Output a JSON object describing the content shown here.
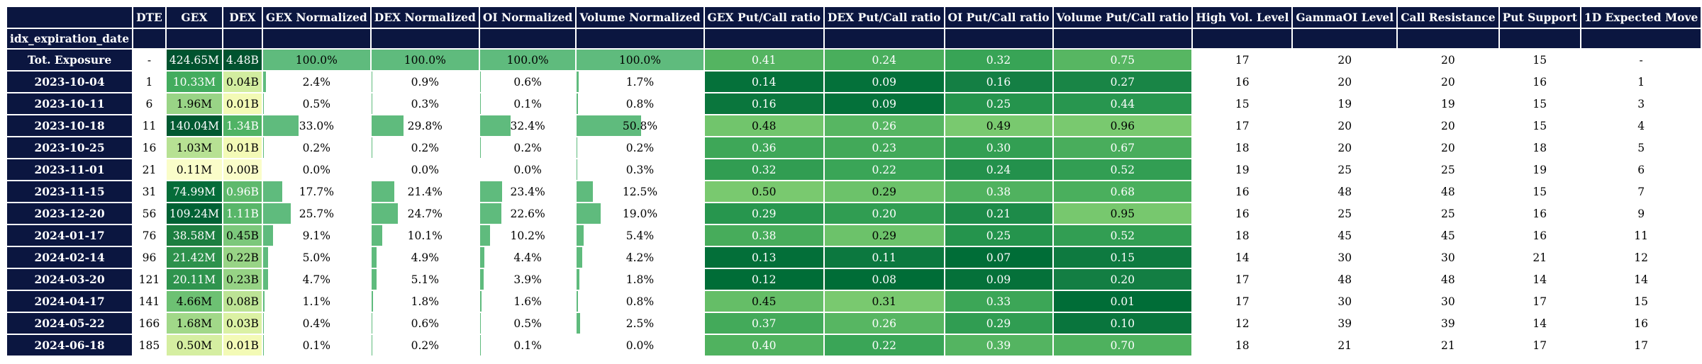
{
  "columns": [
    {
      "key": "dte",
      "label": "DTE",
      "kind": "plain"
    },
    {
      "key": "gex",
      "label": "GEX",
      "kind": "heat",
      "scale": "YlGn"
    },
    {
      "key": "dex",
      "label": "DEX",
      "kind": "heat",
      "scale": "YlGn"
    },
    {
      "key": "gex_norm",
      "label": "GEX Normalized",
      "kind": "bar"
    },
    {
      "key": "dex_norm",
      "label": "DEX Normalized",
      "kind": "bar"
    },
    {
      "key": "oi_norm",
      "label": "OI Normalized",
      "kind": "bar"
    },
    {
      "key": "vol_norm",
      "label": "Volume Normalized",
      "kind": "bar"
    },
    {
      "key": "gex_pc",
      "label": "GEX Put/Call ratio",
      "kind": "heat",
      "scale": "Greens"
    },
    {
      "key": "dex_pc",
      "label": "DEX Put/Call ratio",
      "kind": "heat",
      "scale": "Greens"
    },
    {
      "key": "oi_pc",
      "label": "OI Put/Call ratio",
      "kind": "heat",
      "scale": "Greens"
    },
    {
      "key": "vol_pc",
      "label": "Volume Put/Call ratio",
      "kind": "heat",
      "scale": "Greens"
    },
    {
      "key": "high_vol",
      "label": "High Vol. Level",
      "kind": "plain"
    },
    {
      "key": "gamma_oi",
      "label": "GammaOI Level",
      "kind": "plain"
    },
    {
      "key": "call_res",
      "label": "Call Resistance",
      "kind": "plain"
    },
    {
      "key": "put_sup",
      "label": "Put Support",
      "kind": "plain"
    },
    {
      "key": "move_1d",
      "label": "1D Expected Move",
      "kind": "plain"
    }
  ],
  "index_label": "idx_expiration_date",
  "colors": {
    "header_bg": "#0b1640",
    "bar_fill": "#5fbb7d",
    "ylgn_range": [
      "#ffffe5",
      "#f7fcb9",
      "#d9f0a3",
      "#addd8e",
      "#78c679",
      "#41ab5d",
      "#238443",
      "#006837",
      "#004529"
    ],
    "greens_range": [
      "#79c96f",
      "#5ab863",
      "#39a456",
      "#22914c",
      "#137e43",
      "#006d37"
    ]
  },
  "rows": [
    {
      "date": "Tot. Exposure",
      "dte": "-",
      "gex": "424.65M",
      "gex_v": 424.65,
      "dex": "4.48B",
      "dex_v": 4.48,
      "gex_norm": "100.0%",
      "gex_norm_v": 100.0,
      "dex_norm": "100.0%",
      "dex_norm_v": 100.0,
      "oi_norm": "100.0%",
      "oi_norm_v": 100.0,
      "vol_norm": "100.0%",
      "vol_norm_v": 100.0,
      "gex_pc": "0.41",
      "dex_pc": "0.24",
      "oi_pc": "0.32",
      "vol_pc": "0.75",
      "high_vol": "17",
      "gamma_oi": "20",
      "call_res": "20",
      "put_sup": "15",
      "move_1d": "-"
    },
    {
      "date": "2023-10-04",
      "dte": "1",
      "gex": "10.33M",
      "gex_v": 10.33,
      "dex": "0.04B",
      "dex_v": 0.04,
      "gex_norm": "2.4%",
      "gex_norm_v": 2.4,
      "dex_norm": "0.9%",
      "dex_norm_v": 0.9,
      "oi_norm": "0.6%",
      "oi_norm_v": 0.6,
      "vol_norm": "1.7%",
      "vol_norm_v": 1.7,
      "gex_pc": "0.14",
      "dex_pc": "0.09",
      "oi_pc": "0.16",
      "vol_pc": "0.27",
      "high_vol": "16",
      "gamma_oi": "20",
      "call_res": "20",
      "put_sup": "16",
      "move_1d": "1"
    },
    {
      "date": "2023-10-11",
      "dte": "6",
      "gex": "1.96M",
      "gex_v": 1.96,
      "dex": "0.01B",
      "dex_v": 0.01,
      "gex_norm": "0.5%",
      "gex_norm_v": 0.5,
      "dex_norm": "0.3%",
      "dex_norm_v": 0.3,
      "oi_norm": "0.1%",
      "oi_norm_v": 0.1,
      "vol_norm": "0.8%",
      "vol_norm_v": 0.8,
      "gex_pc": "0.16",
      "dex_pc": "0.09",
      "oi_pc": "0.25",
      "vol_pc": "0.44",
      "high_vol": "15",
      "gamma_oi": "19",
      "call_res": "19",
      "put_sup": "15",
      "move_1d": "3"
    },
    {
      "date": "2023-10-18",
      "dte": "11",
      "gex": "140.04M",
      "gex_v": 140.04,
      "dex": "1.34B",
      "dex_v": 1.34,
      "gex_norm": "33.0%",
      "gex_norm_v": 33.0,
      "dex_norm": "29.8%",
      "dex_norm_v": 29.8,
      "oi_norm": "32.4%",
      "oi_norm_v": 32.4,
      "vol_norm": "50.8%",
      "vol_norm_v": 50.8,
      "gex_pc": "0.48",
      "dex_pc": "0.26",
      "oi_pc": "0.49",
      "vol_pc": "0.96",
      "high_vol": "17",
      "gamma_oi": "20",
      "call_res": "20",
      "put_sup": "15",
      "move_1d": "4"
    },
    {
      "date": "2023-10-25",
      "dte": "16",
      "gex": "1.03M",
      "gex_v": 1.03,
      "dex": "0.01B",
      "dex_v": 0.01,
      "gex_norm": "0.2%",
      "gex_norm_v": 0.2,
      "dex_norm": "0.2%",
      "dex_norm_v": 0.2,
      "oi_norm": "0.2%",
      "oi_norm_v": 0.2,
      "vol_norm": "0.2%",
      "vol_norm_v": 0.2,
      "gex_pc": "0.36",
      "dex_pc": "0.23",
      "oi_pc": "0.30",
      "vol_pc": "0.67",
      "high_vol": "18",
      "gamma_oi": "20",
      "call_res": "20",
      "put_sup": "18",
      "move_1d": "5"
    },
    {
      "date": "2023-11-01",
      "dte": "21",
      "gex": "0.11M",
      "gex_v": 0.11,
      "dex": "0.00B",
      "dex_v": 0.0,
      "gex_norm": "0.0%",
      "gex_norm_v": 0.0,
      "dex_norm": "0.0%",
      "dex_norm_v": 0.0,
      "oi_norm": "0.0%",
      "oi_norm_v": 0.0,
      "vol_norm": "0.3%",
      "vol_norm_v": 0.3,
      "gex_pc": "0.32",
      "dex_pc": "0.22",
      "oi_pc": "0.24",
      "vol_pc": "0.52",
      "high_vol": "19",
      "gamma_oi": "25",
      "call_res": "25",
      "put_sup": "19",
      "move_1d": "6"
    },
    {
      "date": "2023-11-15",
      "dte": "31",
      "gex": "74.99M",
      "gex_v": 74.99,
      "dex": "0.96B",
      "dex_v": 0.96,
      "gex_norm": "17.7%",
      "gex_norm_v": 17.7,
      "dex_norm": "21.4%",
      "dex_norm_v": 21.4,
      "oi_norm": "23.4%",
      "oi_norm_v": 23.4,
      "vol_norm": "12.5%",
      "vol_norm_v": 12.5,
      "gex_pc": "0.50",
      "dex_pc": "0.29",
      "oi_pc": "0.38",
      "vol_pc": "0.68",
      "high_vol": "16",
      "gamma_oi": "48",
      "call_res": "48",
      "put_sup": "15",
      "move_1d": "7"
    },
    {
      "date": "2023-12-20",
      "dte": "56",
      "gex": "109.24M",
      "gex_v": 109.24,
      "dex": "1.11B",
      "dex_v": 1.11,
      "gex_norm": "25.7%",
      "gex_norm_v": 25.7,
      "dex_norm": "24.7%",
      "dex_norm_v": 24.7,
      "oi_norm": "22.6%",
      "oi_norm_v": 22.6,
      "vol_norm": "19.0%",
      "vol_norm_v": 19.0,
      "gex_pc": "0.29",
      "dex_pc": "0.20",
      "oi_pc": "0.21",
      "vol_pc": "0.95",
      "high_vol": "16",
      "gamma_oi": "25",
      "call_res": "25",
      "put_sup": "16",
      "move_1d": "9"
    },
    {
      "date": "2024-01-17",
      "dte": "76",
      "gex": "38.58M",
      "gex_v": 38.58,
      "dex": "0.45B",
      "dex_v": 0.45,
      "gex_norm": "9.1%",
      "gex_norm_v": 9.1,
      "dex_norm": "10.1%",
      "dex_norm_v": 10.1,
      "oi_norm": "10.2%",
      "oi_norm_v": 10.2,
      "vol_norm": "5.4%",
      "vol_norm_v": 5.4,
      "gex_pc": "0.38",
      "dex_pc": "0.29",
      "oi_pc": "0.25",
      "vol_pc": "0.52",
      "high_vol": "18",
      "gamma_oi": "45",
      "call_res": "45",
      "put_sup": "16",
      "move_1d": "11"
    },
    {
      "date": "2024-02-14",
      "dte": "96",
      "gex": "21.42M",
      "gex_v": 21.42,
      "dex": "0.22B",
      "dex_v": 0.22,
      "gex_norm": "5.0%",
      "gex_norm_v": 5.0,
      "dex_norm": "4.9%",
      "dex_norm_v": 4.9,
      "oi_norm": "4.4%",
      "oi_norm_v": 4.4,
      "vol_norm": "4.2%",
      "vol_norm_v": 4.2,
      "gex_pc": "0.13",
      "dex_pc": "0.11",
      "oi_pc": "0.07",
      "vol_pc": "0.15",
      "high_vol": "14",
      "gamma_oi": "30",
      "call_res": "30",
      "put_sup": "21",
      "move_1d": "12"
    },
    {
      "date": "2024-03-20",
      "dte": "121",
      "gex": "20.11M",
      "gex_v": 20.11,
      "dex": "0.23B",
      "dex_v": 0.23,
      "gex_norm": "4.7%",
      "gex_norm_v": 4.7,
      "dex_norm": "5.1%",
      "dex_norm_v": 5.1,
      "oi_norm": "3.9%",
      "oi_norm_v": 3.9,
      "vol_norm": "1.8%",
      "vol_norm_v": 1.8,
      "gex_pc": "0.12",
      "dex_pc": "0.08",
      "oi_pc": "0.09",
      "vol_pc": "0.20",
      "high_vol": "17",
      "gamma_oi": "48",
      "call_res": "48",
      "put_sup": "14",
      "move_1d": "14"
    },
    {
      "date": "2024-04-17",
      "dte": "141",
      "gex": "4.66M",
      "gex_v": 4.66,
      "dex": "0.08B",
      "dex_v": 0.08,
      "gex_norm": "1.1%",
      "gex_norm_v": 1.1,
      "dex_norm": "1.8%",
      "dex_norm_v": 1.8,
      "oi_norm": "1.6%",
      "oi_norm_v": 1.6,
      "vol_norm": "0.8%",
      "vol_norm_v": 0.8,
      "gex_pc": "0.45",
      "dex_pc": "0.31",
      "oi_pc": "0.33",
      "vol_pc": "0.01",
      "high_vol": "17",
      "gamma_oi": "30",
      "call_res": "30",
      "put_sup": "17",
      "move_1d": "15"
    },
    {
      "date": "2024-05-22",
      "dte": "166",
      "gex": "1.68M",
      "gex_v": 1.68,
      "dex": "0.03B",
      "dex_v": 0.03,
      "gex_norm": "0.4%",
      "gex_norm_v": 0.4,
      "dex_norm": "0.6%",
      "dex_norm_v": 0.6,
      "oi_norm": "0.5%",
      "oi_norm_v": 0.5,
      "vol_norm": "2.5%",
      "vol_norm_v": 2.5,
      "gex_pc": "0.37",
      "dex_pc": "0.26",
      "oi_pc": "0.29",
      "vol_pc": "0.10",
      "high_vol": "12",
      "gamma_oi": "39",
      "call_res": "39",
      "put_sup": "14",
      "move_1d": "16"
    },
    {
      "date": "2024-06-18",
      "dte": "185",
      "gex": "0.50M",
      "gex_v": 0.5,
      "dex": "0.01B",
      "dex_v": 0.01,
      "gex_norm": "0.1%",
      "gex_norm_v": 0.1,
      "dex_norm": "0.2%",
      "dex_norm_v": 0.2,
      "oi_norm": "0.1%",
      "oi_norm_v": 0.1,
      "vol_norm": "0.0%",
      "vol_norm_v": 0.0,
      "gex_pc": "0.40",
      "dex_pc": "0.22",
      "oi_pc": "0.39",
      "vol_pc": "0.70",
      "high_vol": "18",
      "gamma_oi": "21",
      "call_res": "21",
      "put_sup": "17",
      "move_1d": "17"
    }
  ]
}
